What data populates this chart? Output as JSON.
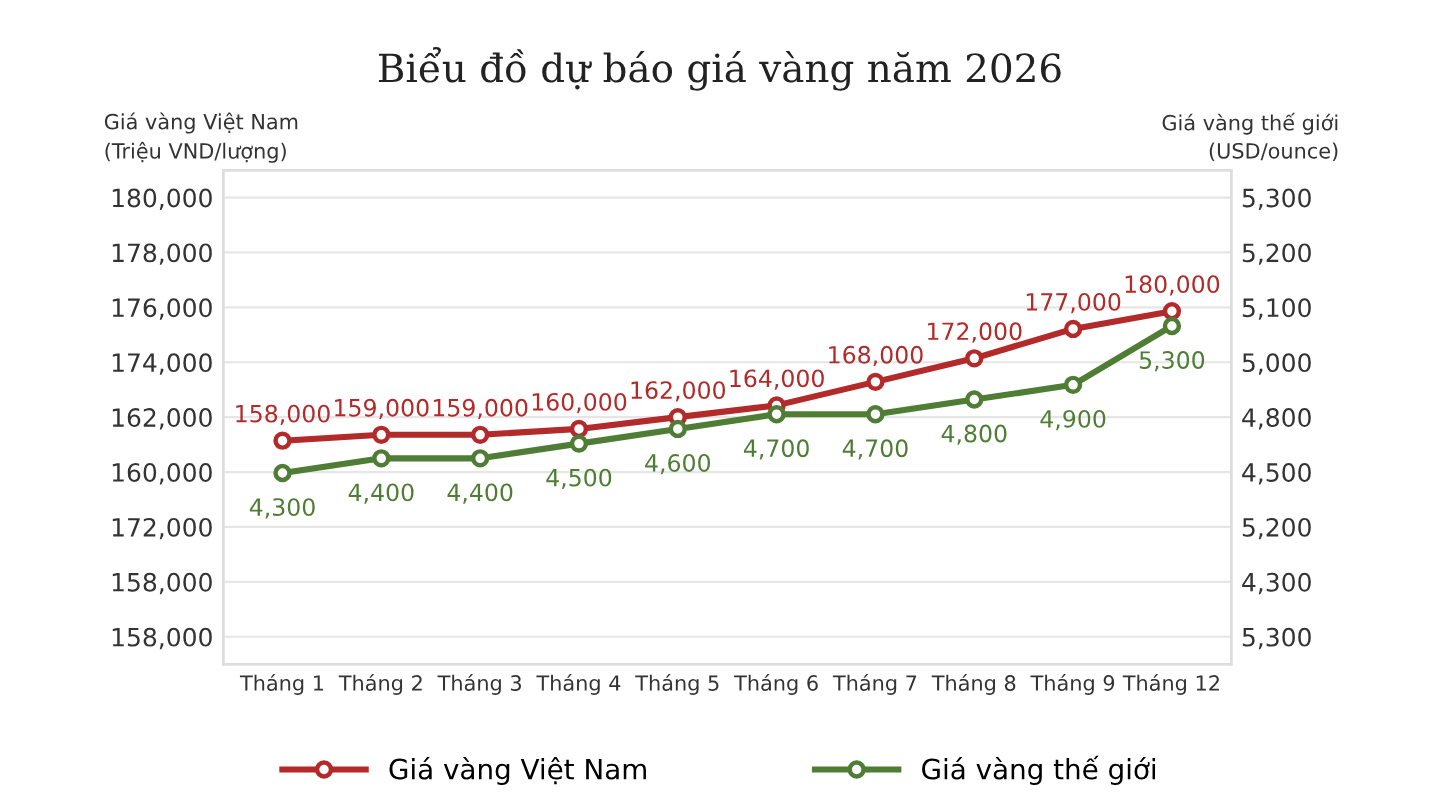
{
  "chart_data": {
    "type": "line",
    "title": "Biểu đồ dự báo giá vàng năm 2026",
    "ylabel": "Giá vàng Việt Nam\n(Triệu VND/lượng)",
    "y2label": "Giá vàng thế giới\n(USD/ounce)",
    "categories": [
      "Tháng 1",
      "Tháng 2",
      "Tháng 3",
      "Tháng 4",
      "Tháng 5",
      "Tháng 6",
      "Tháng 7",
      "Tháng 8",
      "Tháng 9",
      "Tháng 12"
    ],
    "series": [
      {
        "name": "Giá vàng Việt Nam",
        "color": "#b22a2a",
        "values": [
          158000,
          159000,
          159000,
          160000,
          162000,
          164000,
          168000,
          172000,
          177000,
          180000
        ],
        "value_labels": [
          "158,000",
          "159,000",
          "159,000",
          "160,000",
          "162,000",
          "164,000",
          "168,000",
          "172,000",
          "177,000",
          "180,000"
        ]
      },
      {
        "name": "Giá vàng thế giới",
        "color": "#4f7d36",
        "axis": "y2",
        "values": [
          4300,
          4400,
          4400,
          4500,
          4600,
          4700,
          4700,
          4800,
          4900,
          5300
        ],
        "value_labels": [
          "4,300",
          "4,400",
          "4,400",
          "4,500",
          "4,600",
          "4,700",
          "4,700",
          "4,800",
          "4,900",
          "5,300"
        ]
      }
    ],
    "ylim": [
      120000,
      204000
    ],
    "y2lim": [
      3000,
      6360
    ],
    "y_categories": [
      "180,000",
      "178,000",
      "176,000",
      "174,000",
      "162,000",
      "160,000",
      "172,000",
      "158,000",
      "158,000"
    ],
    "y2_categories": [
      "5,300",
      "5,200",
      "5,100",
      "5,000",
      "4,800",
      "4,500",
      "5,200",
      "4,300",
      "5,300"
    ],
    "marker": "circle",
    "line_style": "solid",
    "grid": "y",
    "legend": "bottom"
  }
}
